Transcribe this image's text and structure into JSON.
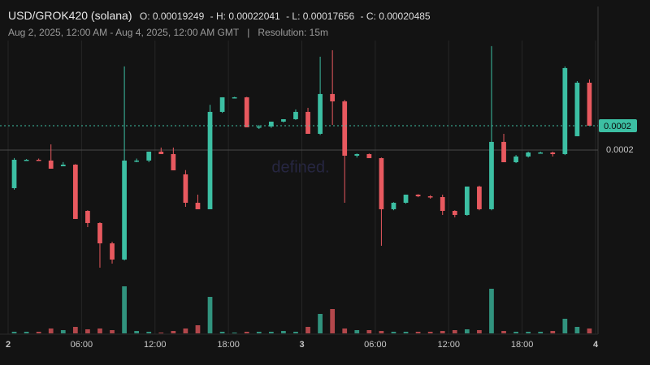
{
  "chart_data": {
    "type": "candlestick",
    "title": "USD/GROK420 (solana)",
    "ohlc": [
      {
        "label": "O:",
        "value": 0.00019249
      },
      {
        "label": "- H:",
        "value": 0.00022041
      },
      {
        "label": "- L:",
        "value": 0.00017656
      },
      {
        "label": "- C:",
        "value": 0.00020485
      }
    ],
    "subtitle": "Aug 2, 2025, 12:00 AM - Aug 4, 2025, 12:00 AM GMT",
    "separator": "|",
    "resolution": "Resolution: 15m",
    "watermark": "defined.",
    "up_color": "#3cbfa3",
    "down_color": "#e8595f",
    "x": [
      0,
      1,
      2,
      3,
      4,
      5,
      6,
      7,
      8,
      9,
      10,
      11,
      12,
      13,
      14,
      15,
      16,
      17,
      18,
      19,
      20,
      21,
      22,
      23,
      24,
      25,
      26,
      27,
      28,
      29,
      30,
      31,
      32,
      33,
      34,
      35,
      36,
      37,
      38,
      39,
      40,
      41,
      42,
      43,
      44,
      45,
      46,
      47
    ],
    "open": [
      0.0001924,
      0.00019806,
      0.00019806,
      0.0001979,
      0.00019677,
      0.00019709,
      0.00018787,
      0.00018545,
      0.0001814,
      0.00017817,
      0.0001979,
      0.0001979,
      0.00019968,
      0.00019919,
      0.00019515,
      0.00018949,
      0.0001882,
      0.0002076,
      0.00021051,
      0.00021051,
      0.00020453,
      0.00020469,
      0.00020566,
      0.00020614,
      0.0002076,
      0.00020323,
      0.00021116,
      0.0002097,
      0.00019887,
      0.00019919,
      0.00019838,
      0.0001882,
      0.00018949,
      0.00019111,
      0.00019078,
      0.00019062,
      0.00018787,
      0.00018706,
      0.00019272,
      0.0001882,
      0.00020162,
      0.00019757,
      0.00019871,
      0.00019951,
      0.00019951,
      0.00019919,
      0.00020275,
      0.00021342
    ],
    "high": [
      0.0001984,
      0.0001982,
      0.0001983,
      0.00020113,
      0.0001976,
      0.0001972,
      0.000188,
      0.0001856,
      0.00018173,
      0.00021666,
      0.0001983,
      0.00019968,
      0.00020049,
      0.00020049,
      0.000196,
      0.00019111,
      0.000209,
      0.00021051,
      0.0002106,
      0.0002106,
      0.000205,
      0.00020566,
      0.00020614,
      0.00020809,
      0.00020841,
      0.0002186,
      0.00021989,
      0.00021,
      0.0001993,
      0.0001993,
      0.0001985,
      0.0001896,
      0.00019111,
      0.0001912,
      0.000191,
      0.00019111,
      0.000188,
      0.00019272,
      0.0001929,
      0.0002207,
      0.00020323,
      0.000199,
      0.00019968,
      0.00019968,
      0.00019968,
      0.00021666,
      0.00021374,
      0.00021407
    ],
    "low": [
      0.0001921,
      0.0001979,
      0.0001979,
      0.00019628,
      0.00019677,
      0.00018626,
      0.00018464,
      0.00017655,
      0.00017736,
      0.000178,
      0.00019757,
      0.00019757,
      0.00019919,
      0.00019596,
      0.00018868,
      0.0001882,
      0.0001882,
      0.0002074,
      0.0002104,
      0.00020453,
      0.0002042,
      0.0002044,
      0.0002055,
      0.000206,
      0.00020323,
      0.000203,
      0.000205,
      0.00018949,
      0.0001985,
      0.00019838,
      0.00018092,
      0.000188,
      0.0001893,
      0.0001906,
      0.0001903,
      0.00018706,
      0.00018658,
      0.0001869,
      0.000188,
      0.000188,
      0.00019757,
      0.0001974,
      0.0001985,
      0.0001994,
      0.0001987,
      0.000199,
      0.00020275,
      0.00020485
    ],
    "close": [
      0.00019806,
      0.00019806,
      0.0001979,
      0.00019628,
      0.00019709,
      0.00018626,
      0.00018545,
      0.0001814,
      0.00017817,
      0.0001979,
      0.0001979,
      0.00019968,
      0.00019919,
      0.00019596,
      0.00018949,
      0.0001882,
      0.0002076,
      0.00021051,
      0.00021051,
      0.00020453,
      0.00020469,
      0.00020566,
      0.00020614,
      0.0002076,
      0.00020323,
      0.00021116,
      0.0002097,
      0.00019887,
      0.00019919,
      0.00019838,
      0.0001882,
      0.00018949,
      0.00019111,
      0.00019078,
      0.00019062,
      0.00018787,
      0.00018706,
      0.00019272,
      0.0001882,
      0.00020162,
      0.00019757,
      0.00019871,
      0.00019951,
      0.00019951,
      0.00019919,
      0.00021633,
      0.00021342,
      0.00020485
    ],
    "volume": [
      2,
      2,
      2,
      6,
      4,
      8,
      5,
      6,
      4,
      58,
      3,
      2,
      1,
      3,
      6,
      10,
      45,
      2,
      1,
      2,
      2,
      2,
      3,
      2,
      8,
      24,
      30,
      6,
      4,
      4,
      3,
      2,
      2,
      2,
      2,
      3,
      4,
      5,
      4,
      55,
      3,
      2,
      2,
      2,
      3,
      18,
      8,
      6
    ],
    "vlim": [
      0,
      60
    ],
    "xlim": [
      0,
      48
    ],
    "xticks": [
      {
        "value": 0,
        "label": "2"
      },
      {
        "value": 6,
        "label": "06:00"
      },
      {
        "value": 12,
        "label": "12:00"
      },
      {
        "value": 18,
        "label": "18:00"
      },
      {
        "value": 24,
        "label": "3"
      },
      {
        "value": 30,
        "label": "06:00"
      },
      {
        "value": 36,
        "label": "12:00"
      },
      {
        "value": 42,
        "label": "18:00"
      },
      {
        "value": 48,
        "label": "4"
      }
    ],
    "ylim": [
      0.0001633,
      0.0002299
    ],
    "yticks": [
      0.0002
    ],
    "last_price": {
      "value": 0.00020485,
      "label": "0.0002"
    },
    "grid": true
  }
}
